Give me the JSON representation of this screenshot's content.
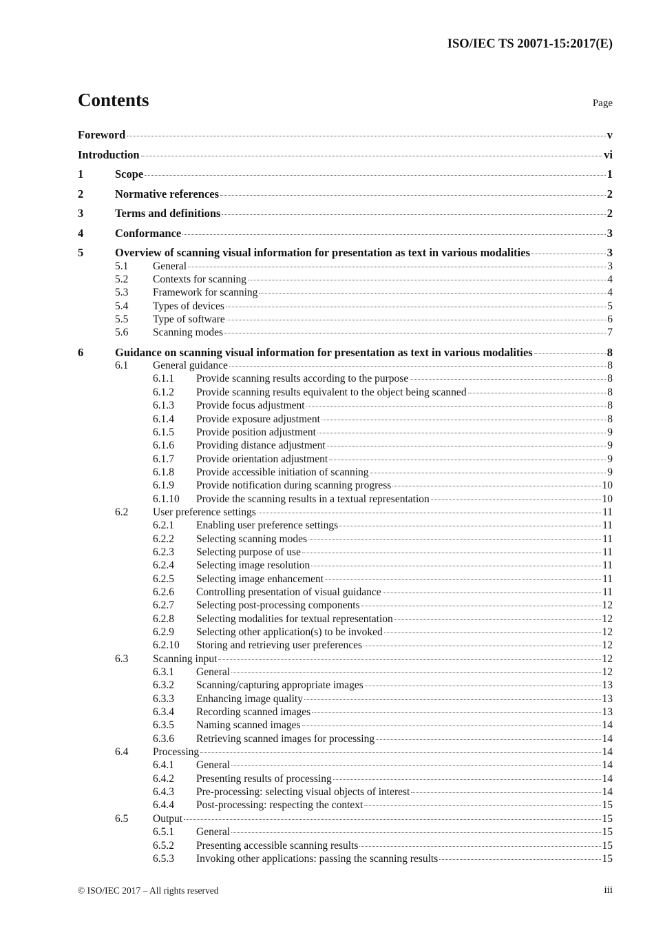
{
  "header": {
    "doc_id": "ISO/IEC TS 20071-15:2017(E)"
  },
  "title": "Contents",
  "page_label": "Page",
  "entries": [
    {
      "level": 0,
      "num": "",
      "title": "Foreword",
      "page": "v"
    },
    {
      "level": 0,
      "num": "",
      "title": "Introduction",
      "page": "vi"
    },
    {
      "level": 1,
      "num": "1",
      "title": "Scope",
      "page": "1"
    },
    {
      "level": 1,
      "num": "2",
      "title": "Normative references",
      "page": "2"
    },
    {
      "level": 1,
      "num": "3",
      "title": "Terms and definitions",
      "page": "2"
    },
    {
      "level": 1,
      "num": "4",
      "title": "Conformance",
      "page": "3"
    },
    {
      "level": 1,
      "num": "5",
      "title": "Overview of scanning visual information for presentation as text in various modalities",
      "page": "3"
    },
    {
      "level": 2,
      "num": "5.1",
      "title": "General",
      "page": "3"
    },
    {
      "level": 2,
      "num": "5.2",
      "title": "Contexts for scanning",
      "page": "4"
    },
    {
      "level": 2,
      "num": "5.3",
      "title": "Framework for scanning",
      "page": "4"
    },
    {
      "level": 2,
      "num": "5.4",
      "title": "Types of devices",
      "page": "5"
    },
    {
      "level": 2,
      "num": "5.5",
      "title": "Type of software",
      "page": "6"
    },
    {
      "level": 2,
      "num": "5.6",
      "title": "Scanning modes",
      "page": "7"
    },
    {
      "level": 1,
      "num": "6",
      "title": "Guidance on scanning visual information for presentation as text in various modalities",
      "page": "8"
    },
    {
      "level": 2,
      "num": "6.1",
      "title": "General guidance",
      "page": "8"
    },
    {
      "level": 3,
      "num": "6.1.1",
      "title": "Provide scanning results according to the purpose",
      "page": "8"
    },
    {
      "level": 3,
      "num": "6.1.2",
      "title": "Provide scanning results equivalent to the object being scanned",
      "page": "8"
    },
    {
      "level": 3,
      "num": "6.1.3",
      "title": "Provide focus adjustment",
      "page": "8"
    },
    {
      "level": 3,
      "num": "6.1.4",
      "title": "Provide exposure adjustment",
      "page": "8"
    },
    {
      "level": 3,
      "num": "6.1.5",
      "title": "Provide position adjustment",
      "page": "9"
    },
    {
      "level": 3,
      "num": "6.1.6",
      "title": "Providing distance adjustment",
      "page": "9"
    },
    {
      "level": 3,
      "num": "6.1.7",
      "title": "Provide orientation adjustment",
      "page": "9"
    },
    {
      "level": 3,
      "num": "6.1.8",
      "title": "Provide accessible initiation of scanning",
      "page": "9"
    },
    {
      "level": 3,
      "num": "6.1.9",
      "title": "Provide notification during scanning progress",
      "page": "10"
    },
    {
      "level": 3,
      "num": "6.1.10",
      "title": "Provide the scanning results in a textual representation",
      "page": "10"
    },
    {
      "level": 2,
      "num": "6.2",
      "title": "User preference settings",
      "page": "11"
    },
    {
      "level": 3,
      "num": "6.2.1",
      "title": "Enabling user preference settings",
      "page": "11"
    },
    {
      "level": 3,
      "num": "6.2.2",
      "title": "Selecting scanning modes",
      "page": "11"
    },
    {
      "level": 3,
      "num": "6.2.3",
      "title": "Selecting purpose of use",
      "page": "11"
    },
    {
      "level": 3,
      "num": "6.2.4",
      "title": "Selecting image resolution",
      "page": "11"
    },
    {
      "level": 3,
      "num": "6.2.5",
      "title": "Selecting image enhancement",
      "page": "11"
    },
    {
      "level": 3,
      "num": "6.2.6",
      "title": "Controlling presentation of visual guidance",
      "page": "11"
    },
    {
      "level": 3,
      "num": "6.2.7",
      "title": "Selecting post-processing components",
      "page": "12"
    },
    {
      "level": 3,
      "num": "6.2.8",
      "title": "Selecting modalities for textual representation",
      "page": "12"
    },
    {
      "level": 3,
      "num": "6.2.9",
      "title": "Selecting other application(s) to be invoked",
      "page": "12"
    },
    {
      "level": 3,
      "num": "6.2.10",
      "title": "Storing and retrieving user preferences",
      "page": "12"
    },
    {
      "level": 2,
      "num": "6.3",
      "title": "Scanning input",
      "page": "12"
    },
    {
      "level": 3,
      "num": "6.3.1",
      "title": "General",
      "page": "12"
    },
    {
      "level": 3,
      "num": "6.3.2",
      "title": "Scanning/capturing appropriate images",
      "page": "13"
    },
    {
      "level": 3,
      "num": "6.3.3",
      "title": "Enhancing image quality",
      "page": "13"
    },
    {
      "level": 3,
      "num": "6.3.4",
      "title": "Recording scanned images",
      "page": "13"
    },
    {
      "level": 3,
      "num": "6.3.5",
      "title": "Naming scanned images",
      "page": "14"
    },
    {
      "level": 3,
      "num": "6.3.6",
      "title": "Retrieving scanned images for processing",
      "page": "14"
    },
    {
      "level": 2,
      "num": "6.4",
      "title": "Processing",
      "page": "14"
    },
    {
      "level": 3,
      "num": "6.4.1",
      "title": "General",
      "page": "14"
    },
    {
      "level": 3,
      "num": "6.4.2",
      "title": "Presenting results of processing",
      "page": "14"
    },
    {
      "level": 3,
      "num": "6.4.3",
      "title": "Pre-processing: selecting visual objects of interest",
      "page": "14"
    },
    {
      "level": 3,
      "num": "6.4.4",
      "title": "Post-processing: respecting the context",
      "page": "15"
    },
    {
      "level": 2,
      "num": "6.5",
      "title": "Output",
      "page": "15"
    },
    {
      "level": 3,
      "num": "6.5.1",
      "title": "General",
      "page": "15"
    },
    {
      "level": 3,
      "num": "6.5.2",
      "title": "Presenting accessible scanning results",
      "page": "15"
    },
    {
      "level": 3,
      "num": "6.5.3",
      "title": "Invoking other applications: passing the scanning results",
      "page": "15"
    }
  ],
  "footer": {
    "copyright": "© ISO/IEC 2017 – All rights reserved",
    "page_number": "iii"
  }
}
